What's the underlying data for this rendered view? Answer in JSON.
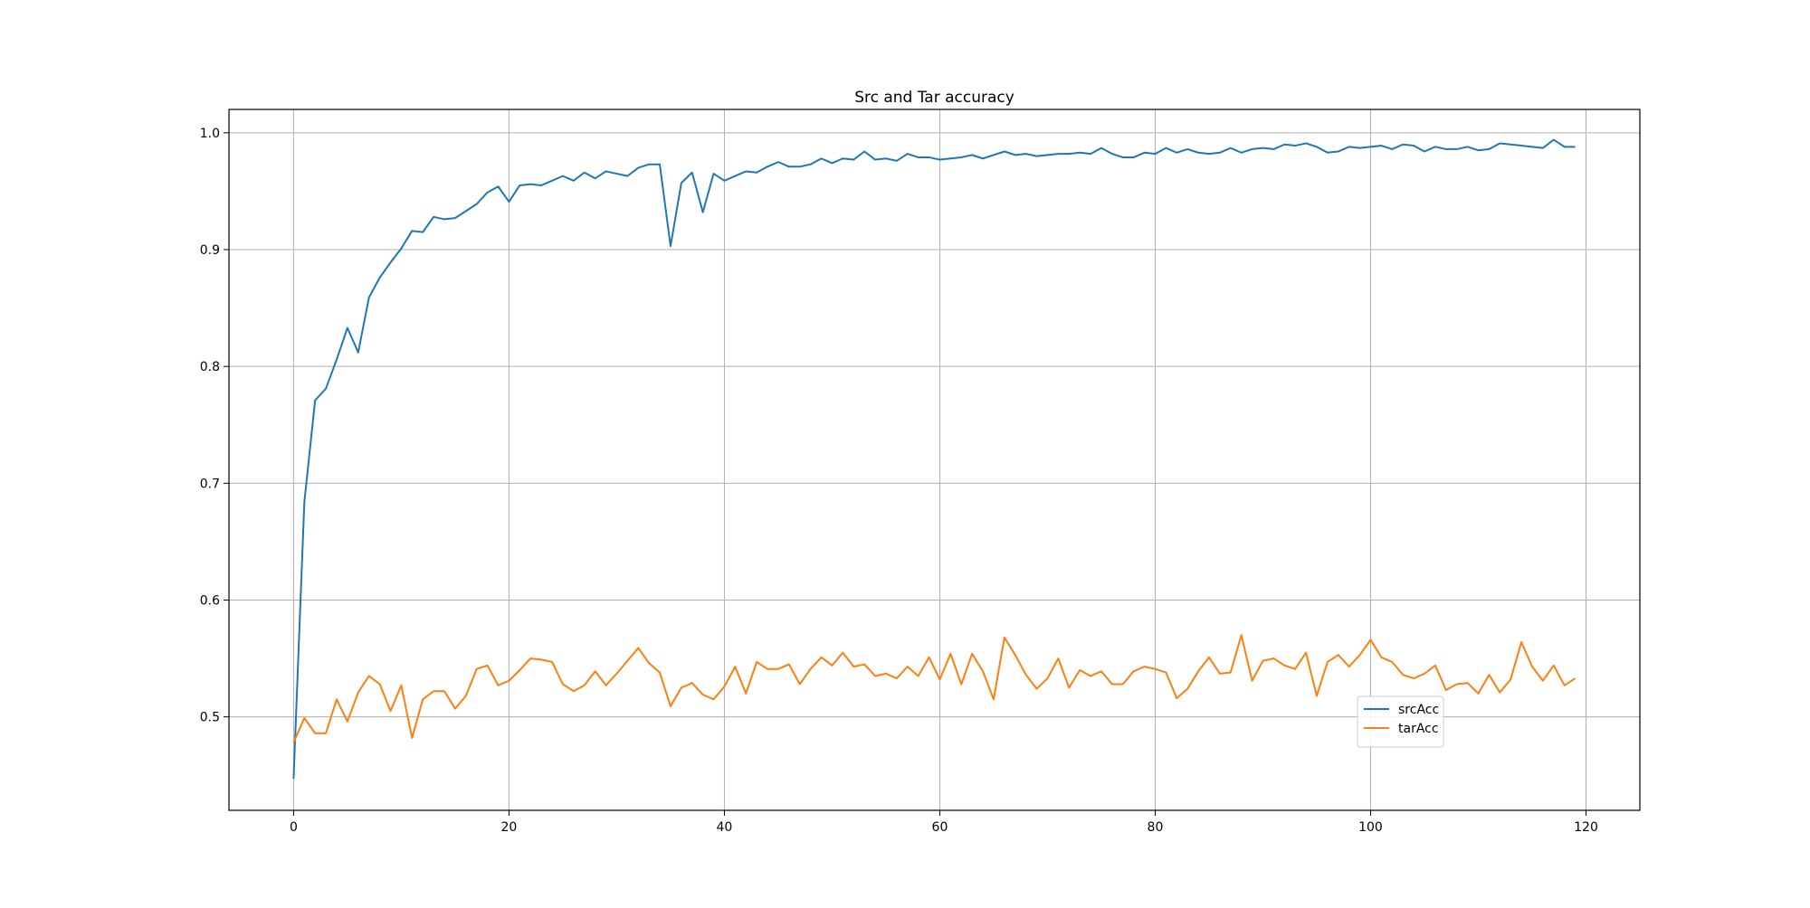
{
  "chart_data": {
    "type": "line",
    "title": "Src and Tar accuracy",
    "xlabel": "",
    "ylabel": "",
    "xlim": [
      -6,
      125
    ],
    "ylim": [
      0.42,
      1.02
    ],
    "xticks": [
      0,
      20,
      40,
      60,
      80,
      100,
      120
    ],
    "yticks": [
      0.5,
      0.6,
      0.7,
      0.8,
      0.9,
      1.0
    ],
    "ytick_labels": [
      "0.5",
      "0.6",
      "0.7",
      "0.8",
      "0.9",
      "1.0"
    ],
    "grid": true,
    "legend_position": "lower-right",
    "series": [
      {
        "name": "srcAcc",
        "color": "#1f77b4",
        "values": [
          0.447,
          0.684,
          0.771,
          0.781,
          0.806,
          0.833,
          0.812,
          0.859,
          0.876,
          0.889,
          0.901,
          0.916,
          0.915,
          0.928,
          0.926,
          0.927,
          0.933,
          0.939,
          0.949,
          0.954,
          0.941,
          0.955,
          0.956,
          0.955,
          0.959,
          0.963,
          0.959,
          0.966,
          0.961,
          0.967,
          0.965,
          0.963,
          0.97,
          0.973,
          0.973,
          0.903,
          0.957,
          0.966,
          0.932,
          0.965,
          0.959,
          0.963,
          0.967,
          0.966,
          0.971,
          0.975,
          0.971,
          0.971,
          0.973,
          0.978,
          0.974,
          0.978,
          0.977,
          0.984,
          0.977,
          0.978,
          0.976,
          0.982,
          0.979,
          0.979,
          0.977,
          0.978,
          0.979,
          0.981,
          0.978,
          0.981,
          0.984,
          0.981,
          0.982,
          0.98,
          0.981,
          0.982,
          0.982,
          0.983,
          0.982,
          0.987,
          0.982,
          0.979,
          0.979,
          0.983,
          0.982,
          0.987,
          0.983,
          0.986,
          0.983,
          0.982,
          0.983,
          0.987,
          0.983,
          0.986,
          0.987,
          0.986,
          0.99,
          0.989,
          0.991,
          0.988,
          0.983,
          0.984,
          0.988,
          0.987,
          0.988,
          0.989,
          0.986,
          0.99,
          0.989,
          0.984,
          0.988,
          0.986,
          0.986,
          0.988,
          0.985,
          0.986,
          0.991,
          0.99,
          0.989,
          0.988,
          0.987,
          0.994,
          0.988,
          0.988
        ]
      },
      {
        "name": "tarAcc",
        "color": "#ff7f0e",
        "values": [
          0.478,
          0.499,
          0.486,
          0.486,
          0.515,
          0.496,
          0.521,
          0.535,
          0.528,
          0.505,
          0.527,
          0.482,
          0.515,
          0.522,
          0.522,
          0.507,
          0.518,
          0.541,
          0.544,
          0.527,
          0.531,
          0.54,
          0.55,
          0.549,
          0.547,
          0.528,
          0.522,
          0.527,
          0.539,
          0.527,
          0.537,
          0.548,
          0.559,
          0.546,
          0.538,
          0.509,
          0.525,
          0.529,
          0.519,
          0.515,
          0.526,
          0.543,
          0.52,
          0.547,
          0.541,
          0.541,
          0.545,
          0.528,
          0.541,
          0.551,
          0.544,
          0.555,
          0.543,
          0.545,
          0.535,
          0.537,
          0.533,
          0.543,
          0.535,
          0.551,
          0.532,
          0.554,
          0.528,
          0.554,
          0.539,
          0.515,
          0.568,
          0.553,
          0.536,
          0.524,
          0.533,
          0.55,
          0.525,
          0.54,
          0.535,
          0.539,
          0.528,
          0.528,
          0.539,
          0.543,
          0.541,
          0.538,
          0.516,
          0.524,
          0.539,
          0.551,
          0.537,
          0.538,
          0.57,
          0.531,
          0.548,
          0.55,
          0.544,
          0.541,
          0.555,
          0.518,
          0.547,
          0.553,
          0.543,
          0.553,
          0.566,
          0.551,
          0.547,
          0.536,
          0.533,
          0.537,
          0.544,
          0.523,
          0.528,
          0.529,
          0.52,
          0.536,
          0.521,
          0.532,
          0.564,
          0.543,
          0.531,
          0.544,
          0.527,
          0.533
        ]
      }
    ]
  }
}
